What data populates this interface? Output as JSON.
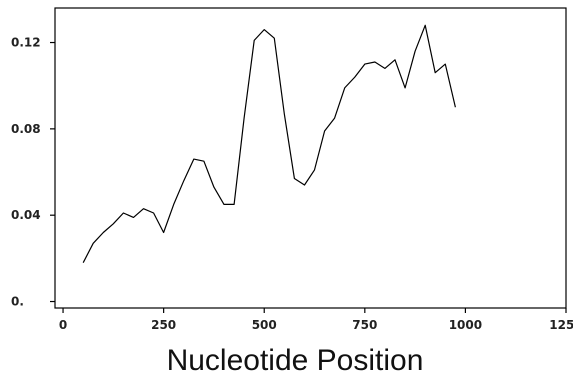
{
  "chart_data": {
    "type": "line",
    "title": "",
    "xlabel": "Nucleotide Position",
    "ylabel": "",
    "xlim": [
      -20,
      1250
    ],
    "ylim": [
      -0.003,
      0.136
    ],
    "x_ticks": [
      0,
      250,
      500,
      750,
      1000,
      1250
    ],
    "x_tick_labels": [
      "0",
      "250",
      "500",
      "750",
      "1000",
      "1250"
    ],
    "y_ticks": [
      0,
      0.04,
      0.08,
      0.12
    ],
    "y_tick_labels": [
      "0.",
      "0.04",
      "0.08",
      "0.12"
    ],
    "grid": false,
    "legend": "none",
    "line_color": "#000000",
    "series": [
      {
        "x": [
          50,
          75,
          100,
          125,
          150,
          175,
          200,
          225,
          250,
          275,
          300,
          325,
          350,
          375,
          400,
          425,
          450,
          475,
          500,
          525,
          550,
          575,
          600,
          625,
          650,
          675,
          700,
          725,
          750,
          775,
          800,
          825,
          850,
          875,
          900,
          925,
          950,
          975
        ],
        "y": [
          0.018,
          0.027,
          0.032,
          0.036,
          0.041,
          0.039,
          0.043,
          0.041,
          0.032,
          0.045,
          0.056,
          0.066,
          0.065,
          0.053,
          0.045,
          0.045,
          0.085,
          0.121,
          0.126,
          0.122,
          0.087,
          0.057,
          0.054,
          0.061,
          0.079,
          0.085,
          0.099,
          0.104,
          0.11,
          0.111,
          0.108,
          0.112,
          0.099,
          0.116,
          0.128,
          0.106,
          0.11,
          0.09
        ]
      }
    ]
  }
}
